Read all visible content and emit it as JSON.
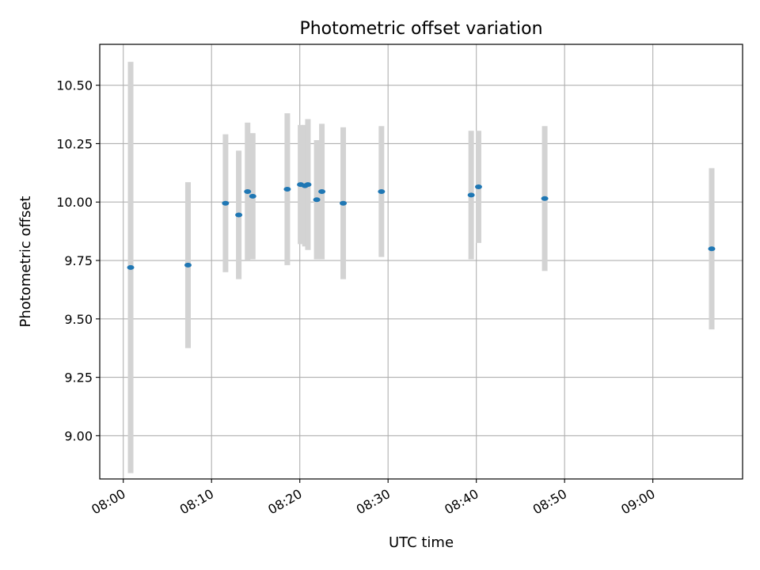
{
  "chart_data": {
    "type": "scatter",
    "title": "Photometric offset variation",
    "xlabel": "UTC time",
    "ylabel": "Photometric offset",
    "xlim": [
      "07:57:20",
      "09:10:10"
    ],
    "ylim": [
      8.815,
      10.675
    ],
    "x_ticks": [
      "08:00",
      "08:10",
      "08:20",
      "08:30",
      "08:40",
      "08:50",
      "09:00"
    ],
    "y_ticks": [
      "9.00",
      "9.25",
      "9.50",
      "9.75",
      "10.00",
      "10.25",
      "10.50"
    ],
    "grid": true,
    "colors": {
      "marker": "#1f77b4",
      "errorbar": "#d3d3d3",
      "grid": "#b0b0b0"
    },
    "points": [
      {
        "time": "08:00:50",
        "value": 9.72,
        "error": 0.88
      },
      {
        "time": "08:07:20",
        "value": 9.73,
        "error": 0.355
      },
      {
        "time": "08:11:35",
        "value": 9.995,
        "error": 0.295
      },
      {
        "time": "08:13:05",
        "value": 9.945,
        "error": 0.275
      },
      {
        "time": "08:14:05",
        "value": 10.045,
        "error": 0.295
      },
      {
        "time": "08:14:40",
        "value": 10.025,
        "error": 0.27
      },
      {
        "time": "08:18:35",
        "value": 10.055,
        "error": 0.325
      },
      {
        "time": "08:20:05",
        "value": 10.075,
        "error": 0.255
      },
      {
        "time": "08:20:35",
        "value": 10.07,
        "error": 0.26
      },
      {
        "time": "08:20:55",
        "value": 10.075,
        "error": 0.28
      },
      {
        "time": "08:21:55",
        "value": 10.01,
        "error": 0.255
      },
      {
        "time": "08:22:30",
        "value": 10.045,
        "error": 0.29
      },
      {
        "time": "08:24:55",
        "value": 9.995,
        "error": 0.325
      },
      {
        "time": "08:29:15",
        "value": 10.045,
        "error": 0.28
      },
      {
        "time": "08:39:25",
        "value": 10.03,
        "error": 0.275
      },
      {
        "time": "08:40:15",
        "value": 10.065,
        "error": 0.24
      },
      {
        "time": "08:47:45",
        "value": 10.015,
        "error": 0.31
      },
      {
        "time": "09:06:40",
        "value": 9.8,
        "error": 0.345
      }
    ]
  }
}
